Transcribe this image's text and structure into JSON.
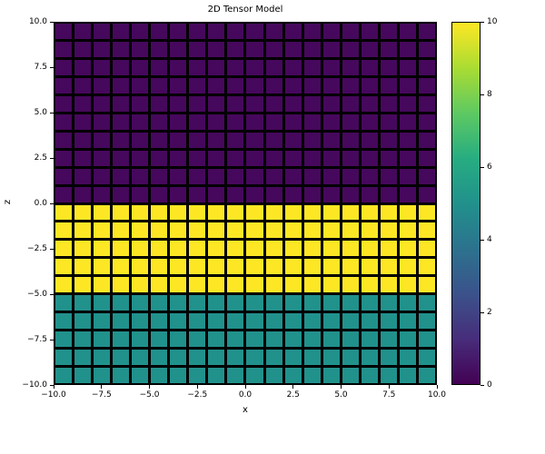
{
  "figure": {
    "title": "2D Tensor Model",
    "xlabel": "x",
    "ylabel": "z",
    "background_color": "#ffffff"
  },
  "axes": {
    "xtick_labels": [
      "−10.0",
      "−7.5",
      "−5.0",
      "−2.5",
      "0.0",
      "2.5",
      "5.0",
      "7.5",
      "10.0"
    ],
    "xtick_values": [
      -10,
      -7.5,
      -5,
      -2.5,
      0,
      2.5,
      5,
      7.5,
      10
    ],
    "ytick_labels": [
      "−10.0",
      "−7.5",
      "−5.0",
      "−2.5",
      "0.0",
      "2.5",
      "5.0",
      "7.5",
      "10.0"
    ],
    "ytick_values": [
      -10,
      -7.5,
      -5,
      -2.5,
      0,
      2.5,
      5,
      7.5,
      10
    ]
  },
  "colorbar": {
    "tick_labels": [
      "0",
      "2",
      "4",
      "6",
      "8",
      "10"
    ],
    "tick_values": [
      0,
      2,
      4,
      6,
      8,
      10
    ],
    "min": 0,
    "max": 10,
    "gradient_stops_bottom_to_top": [
      "#440154",
      "#472d7b",
      "#3b528b",
      "#2c728e",
      "#21918c",
      "#27ad81",
      "#5ec962",
      "#aadc32",
      "#fde725"
    ]
  },
  "chart_data": {
    "type": "heatmap",
    "title": "2D Tensor Model",
    "xlabel": "x",
    "ylabel": "z",
    "xlim": [
      -10,
      10
    ],
    "zlim": [
      -10,
      10
    ],
    "nx": 20,
    "nz": 20,
    "cell_size_units": 1,
    "colormap": "viridis",
    "clim": [
      0,
      10
    ],
    "edge_color": "#000000",
    "grid_on": false,
    "legend": "colorbar-right",
    "bands": [
      {
        "z_range": [
          0,
          10
        ],
        "value": 0
      },
      {
        "z_range": [
          -5,
          0
        ],
        "value": 10
      },
      {
        "z_range": [
          -10,
          -5
        ],
        "value": 5
      }
    ],
    "row_values_top_to_bottom": [
      0,
      0,
      0,
      0,
      0,
      0,
      0,
      0,
      0,
      0,
      10,
      10,
      10,
      10,
      10,
      5,
      5,
      5,
      5,
      5
    ],
    "value_colors": {
      "0": "#46085c",
      "5": "#21918c",
      "10": "#fde725"
    }
  }
}
